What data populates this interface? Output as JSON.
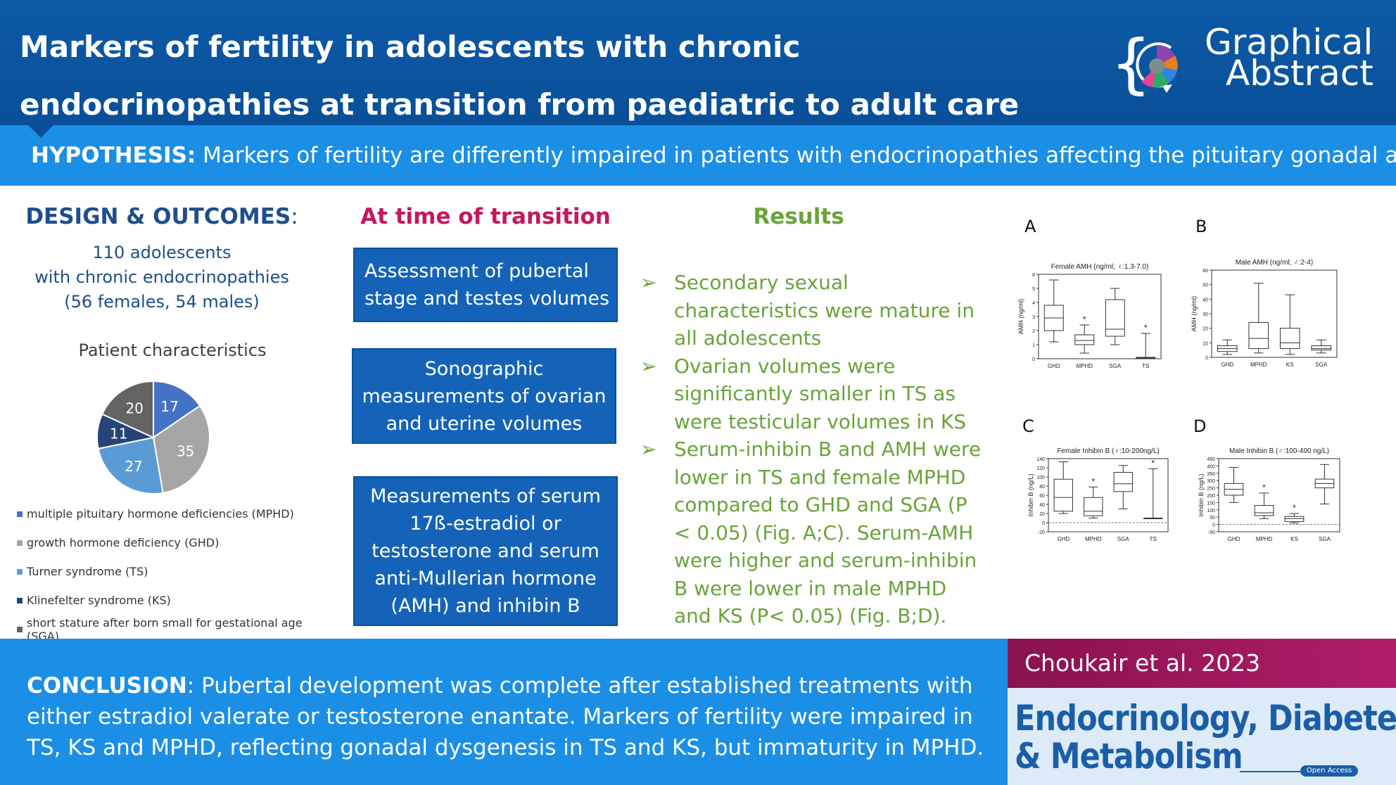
{
  "header": {
    "title": "Markers of fertility in adolescents with chronic endocrinopathies at transition from paediatric to adult care",
    "badge_line1": "Graphical",
    "badge_line2": "Abstract"
  },
  "hypothesis": {
    "label": "HYPOTHESIS:",
    "text": " Markers of fertility are differently impaired in patients with endocrinopathies affecting the pituitary gonadal axis"
  },
  "design": {
    "title": "DESIGN & OUTCOMES",
    "title_colon": ":",
    "line1": "110 adolescents",
    "line2": "with chronic endocrinopathies",
    "line3": "(56 females, 54 males)",
    "chart_title": "Patient characteristics",
    "legend": [
      {
        "label": "multiple pituitary hormone deficiencies (MPHD)",
        "color": "#4472c4"
      },
      {
        "label": "growth hormone deficiency (GHD)",
        "color": "#a5a5a5"
      },
      {
        "label": "Turner syndrome (TS)",
        "color": "#5b9bd5"
      },
      {
        "label": "Klinefelter syndrome (KS)",
        "color": "#264478"
      },
      {
        "label": "short stature after born small for gestational age (SGA)",
        "color": "#636363"
      }
    ]
  },
  "transition": {
    "title": "At time of transition",
    "box1": "Assessment of pubertal stage and testes volumes",
    "box2": "Sonographic measurements of ovarian and uterine volumes",
    "box3": "Measurements of serum 17ß-estradiol or testosterone and serum anti-Mullerian hormone (AMH) and inhibin B"
  },
  "results": {
    "title": "Results",
    "bullet_glyph": "➢",
    "bullets": [
      "Secondary sexual characteristics were mature in all adolescents",
      "Ovarian volumes were significantly smaller in TS as were testicular volumes in KS",
      "Serum-inhibin B and AMH were lower in TS and female MPHD compared to GHD and SGA (P < 0.05) (Fig. A;C). Serum-AMH were higher and serum-inhibin B were lower in male MPHD and KS (P< 0.05) (Fig. B;D)."
    ]
  },
  "conclusion": {
    "label": "CONCLUSION",
    "text": ": Pubertal development was complete after established treatments with either estradiol valerate or testosterone enantate. Markers of fertility were impaired in TS, KS and MPHD, reflecting gonadal dysgenesis in TS and KS, but immaturity in MPHD."
  },
  "citation": {
    "authors": "Choukair et al. 2023",
    "journal_line1": "Endocrinology, Diabetes",
    "journal_line2": "& Metabolism",
    "open_access": "Open Access"
  },
  "chart_data": [
    {
      "type": "pie",
      "title": "Patient characteristics",
      "categories": [
        "multiple pituitary hormone deficiencies (MPHD)",
        "growth hormone deficiency (GHD)",
        "Turner syndrome (TS)",
        "Klinefelter syndrome (KS)",
        "short stature after born small for gestational age (SGA)"
      ],
      "values": [
        17,
        35,
        27,
        11,
        20
      ],
      "colors": [
        "#4472c4",
        "#a5a5a5",
        "#5b9bd5",
        "#264478",
        "#636363"
      ],
      "value_label_colors": [
        "#ffffff",
        "#ffffff",
        "#ffffff",
        "#ffffff",
        "#ffffff"
      ]
    },
    {
      "type": "boxplot",
      "panel": "A",
      "title": "Female AMH (ng/ml; ♀:1.3-7.0)",
      "ylabel": "AMH (ng/ml)",
      "ylim": [
        0,
        6
      ],
      "yticks": [
        0,
        1,
        2,
        3,
        4,
        5,
        6
      ],
      "categories": [
        "GHD",
        "MPHD",
        "SGA",
        "TS"
      ],
      "boxes": [
        [
          1.2,
          2.0,
          2.9,
          3.8,
          5.6
        ],
        [
          0.4,
          1.0,
          1.3,
          1.7,
          2.4
        ],
        [
          1.0,
          1.6,
          2.1,
          4.2,
          5.0
        ],
        [
          0.0,
          0.0,
          0.05,
          0.1,
          1.8
        ]
      ],
      "significant": [
        "",
        "*",
        "",
        "*"
      ],
      "reference_line": null
    },
    {
      "type": "boxplot",
      "panel": "B",
      "title": "Male AMH (ng/ml; ♂:2-4)",
      "ylabel": "AMH (ng/ml)",
      "ylim": [
        0,
        60
      ],
      "yticks": [
        0,
        10,
        20,
        30,
        40,
        50,
        60
      ],
      "categories": [
        "GHD",
        "MPHD",
        "KS",
        "SGA"
      ],
      "boxes": [
        [
          2,
          4,
          6,
          8,
          12
        ],
        [
          3,
          6,
          13,
          24,
          51
        ],
        [
          2,
          6,
          10,
          20,
          43
        ],
        [
          3,
          5,
          6,
          8,
          12
        ]
      ],
      "significant": [
        "",
        "",
        "",
        ""
      ],
      "reference_line": null
    },
    {
      "type": "boxplot",
      "panel": "C",
      "title": "Female Inhibin B (♀:10-200ng/L)",
      "ylabel": "Inhibin B (ng/L)",
      "ylim": [
        -20,
        140
      ],
      "yticks": [
        -20,
        0,
        20,
        40,
        60,
        80,
        100,
        120,
        140
      ],
      "categories": [
        "GHD",
        "MPHD",
        "SGA",
        "TS"
      ],
      "boxes": [
        [
          20,
          25,
          55,
          95,
          133
        ],
        [
          10,
          15,
          25,
          55,
          78
        ],
        [
          30,
          68,
          85,
          110,
          125
        ],
        [
          10,
          10,
          10,
          10,
          118
        ]
      ],
      "significant": [
        "",
        "*",
        "",
        "*"
      ],
      "reference_line": 0
    },
    {
      "type": "boxplot",
      "panel": "D",
      "title": "Male Inhibin B (♂:100-400 ng/L)",
      "ylabel": "Inhibin B (ng/L)",
      "ylim": [
        -50,
        450
      ],
      "yticks": [
        -50,
        0,
        50,
        100,
        150,
        200,
        250,
        300,
        350,
        400,
        450
      ],
      "categories": [
        "GHD",
        "MPHD",
        "KS",
        "SGA"
      ],
      "boxes": [
        [
          150,
          200,
          240,
          280,
          390
        ],
        [
          40,
          60,
          80,
          130,
          215
        ],
        [
          10,
          20,
          40,
          55,
          75
        ],
        [
          140,
          250,
          280,
          310,
          410
        ]
      ],
      "significant": [
        "",
        "*",
        "*",
        ""
      ],
      "reference_line": 0
    }
  ]
}
